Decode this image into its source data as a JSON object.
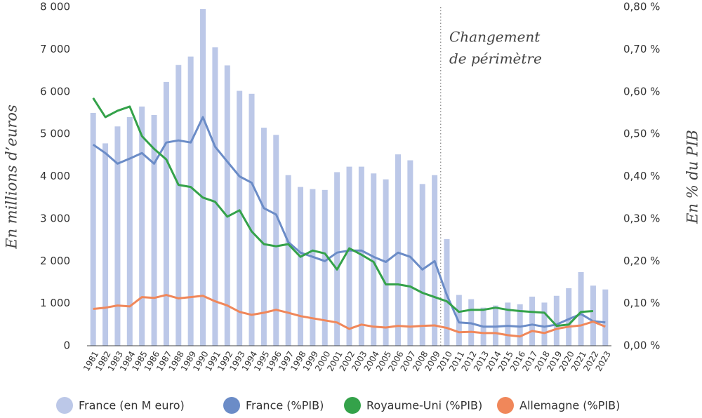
{
  "chart_data": {
    "type": "bar",
    "y_label": "En millions d’euros",
    "y2_label": "En % du PIB",
    "annotation": [
      "Changement",
      "de périmètre"
    ],
    "categories": [
      "1981",
      "1982",
      "1983",
      "1984",
      "1985",
      "1986",
      "1987",
      "1988",
      "1989",
      "1990",
      "1991",
      "1992",
      "1993",
      "1994",
      "1995",
      "1996",
      "1997",
      "1998",
      "1999",
      "2000",
      "2001",
      "2002",
      "2003",
      "2004",
      "2005",
      "2006",
      "2007",
      "2008",
      "2009",
      "2010",
      "2011",
      "2012",
      "2013",
      "2014",
      "2015",
      "2016",
      "2017",
      "2018",
      "2019",
      "2020",
      "2021",
      "2022",
      "2023"
    ],
    "ylim": [
      0,
      8000
    ],
    "yticks": [
      0,
      {
        "value": 1000,
        "label": "1 000"
      },
      {
        "value": 2000,
        "label": "2 000"
      },
      {
        "value": 3000,
        "label": "3 000"
      },
      {
        "value": 4000,
        "label": "4 000"
      },
      {
        "value": 5000,
        "label": "5 000"
      },
      {
        "value": 6000,
        "label": "6 000"
      },
      {
        "value": 7000,
        "label": "7 000"
      },
      {
        "value": 8000,
        "label": "8 000"
      }
    ],
    "y2lim": [
      0,
      0.8
    ],
    "y2ticks": [
      {
        "value": 0,
        "label": "0,00 %"
      },
      {
        "value": 0.1,
        "label": "0,10 %"
      },
      {
        "value": 0.2,
        "label": "0,20 %"
      },
      {
        "value": 0.3,
        "label": "0,30 %"
      },
      {
        "value": 0.4,
        "label": "0,40 %"
      },
      {
        "value": 0.5,
        "label": "0,50 %"
      },
      {
        "value": 0.6,
        "label": "0,60 %"
      },
      {
        "value": 0.7,
        "label": "0,70 %"
      },
      {
        "value": 0.8,
        "label": "0,80 %"
      }
    ],
    "grid": false,
    "legend": "bottom",
    "series": [
      {
        "name": "France (en M euro)",
        "type": "bar",
        "axis": "y",
        "color": "#bcc8e8",
        "values": [
          5500,
          4780,
          5180,
          5400,
          5650,
          5450,
          6230,
          6630,
          6830,
          7950,
          7050,
          6620,
          6020,
          5950,
          5150,
          4980,
          4030,
          3750,
          3700,
          3680,
          4100,
          4230,
          4230,
          4070,
          3930,
          4520,
          4380,
          3820,
          4030,
          2520,
          1200,
          1100,
          900,
          950,
          1020,
          980,
          1160,
          1020,
          1180,
          1360,
          1740,
          1420,
          1330
        ]
      },
      {
        "name": "France (%PIB)",
        "type": "line",
        "axis": "y2",
        "color": "#6b8cc7",
        "values": [
          0.475,
          0.455,
          0.43,
          0.442,
          0.455,
          0.43,
          0.48,
          0.485,
          0.48,
          0.54,
          0.47,
          0.435,
          0.4,
          0.385,
          0.325,
          0.31,
          0.245,
          0.22,
          0.21,
          0.2,
          0.22,
          0.225,
          0.225,
          0.21,
          0.198,
          0.22,
          0.21,
          0.18,
          0.2,
          0.12,
          0.055,
          0.053,
          0.045,
          0.045,
          0.047,
          0.045,
          0.05,
          0.045,
          0.05,
          0.063,
          0.075,
          0.058,
          0.055
        ]
      },
      {
        "name": "Royaume-Uni (%PIB)",
        "type": "line",
        "axis": "y2",
        "color": "#34a24a",
        "values": [
          0.585,
          0.54,
          0.555,
          0.565,
          0.495,
          0.465,
          0.44,
          0.38,
          0.375,
          0.35,
          0.34,
          0.305,
          0.32,
          0.27,
          0.24,
          0.235,
          0.24,
          0.21,
          0.225,
          0.218,
          0.18,
          0.23,
          0.215,
          0.198,
          0.145,
          0.145,
          0.14,
          0.125,
          0.115,
          0.105,
          0.08,
          0.085,
          0.085,
          0.09,
          0.085,
          0.082,
          0.08,
          0.078,
          0.047,
          0.05,
          0.08,
          0.082,
          null
        ]
      },
      {
        "name": "Allemagne (%PIB)",
        "type": "line",
        "axis": "y2",
        "color": "#f0875a",
        "values": [
          0.087,
          0.09,
          0.095,
          0.093,
          0.115,
          0.113,
          0.12,
          0.112,
          0.115,
          0.118,
          0.105,
          0.095,
          0.08,
          0.073,
          0.078,
          0.085,
          0.078,
          0.07,
          0.065,
          0.06,
          0.055,
          0.04,
          0.05,
          0.045,
          0.043,
          0.047,
          0.045,
          0.047,
          0.048,
          0.042,
          0.032,
          0.033,
          0.03,
          0.03,
          0.025,
          0.022,
          0.035,
          0.03,
          0.04,
          0.045,
          0.048,
          0.057,
          0.045
        ]
      }
    ]
  }
}
